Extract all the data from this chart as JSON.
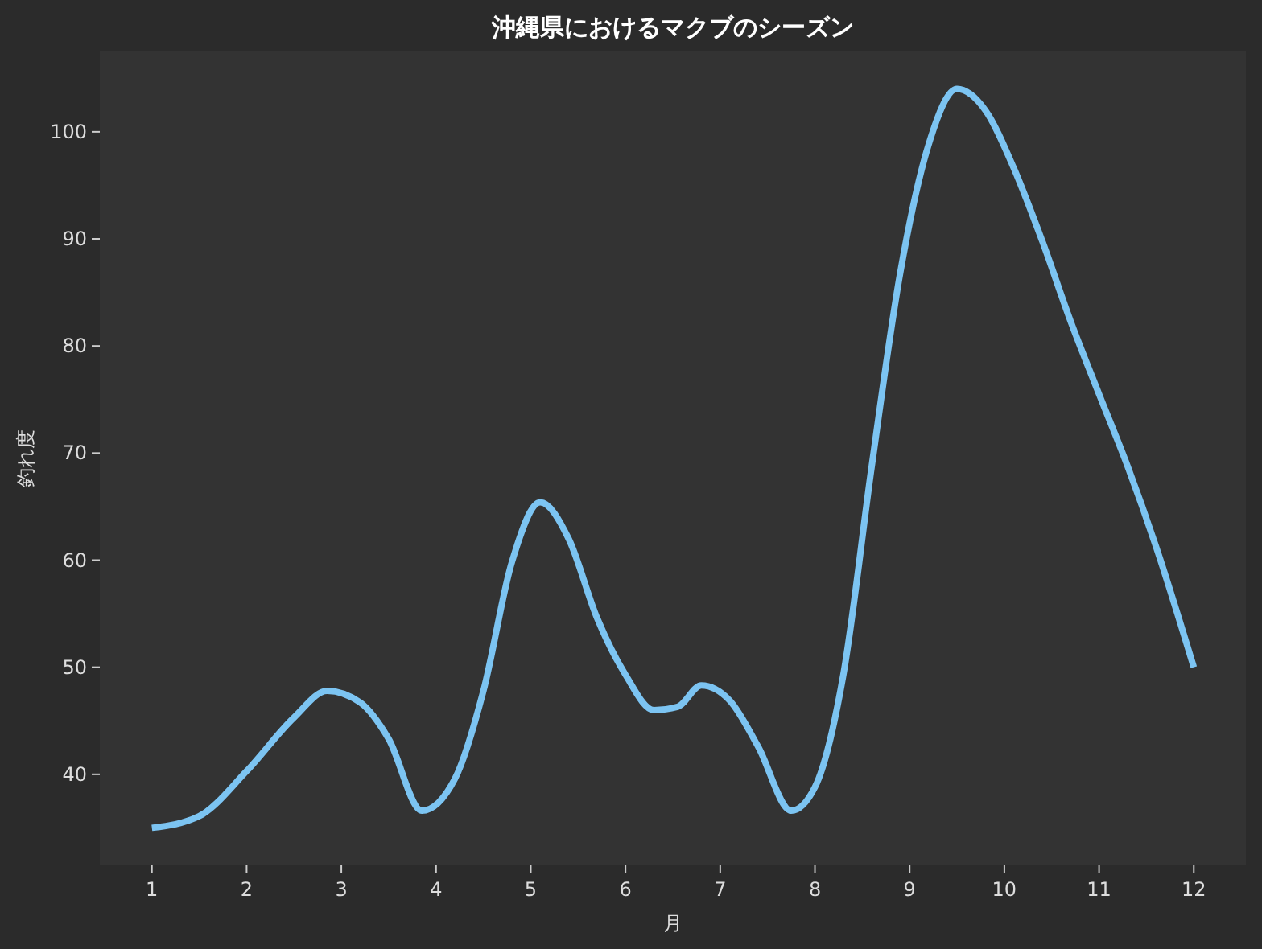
{
  "chart_data": {
    "type": "line",
    "title": "沖縄県におけるマクブのシーズン",
    "xlabel": "月",
    "ylabel": "釣れ度",
    "x": [
      1,
      1.5,
      2,
      2.5,
      2.85,
      3.2,
      3.5,
      3.85,
      4.2,
      4.5,
      4.8,
      5.1,
      5.4,
      5.7,
      6,
      6.3,
      6.55,
      6.8,
      7.1,
      7.4,
      7.75,
      8,
      8.3,
      8.6,
      8.9,
      9.2,
      9.5,
      9.8,
      10.1,
      10.4,
      10.7,
      11,
      11.3,
      11.6,
      12
    ],
    "series": [
      {
        "color": "#7cc4f2",
        "values": [
          35,
          36.1,
          40.3,
          45.3,
          47.8,
          46.7,
          43.3,
          36.6,
          39.6,
          47.8,
          59.8,
          65.4,
          62,
          54.6,
          49.3,
          46,
          46.3,
          48.3,
          46.9,
          42.6,
          36.6,
          38.8,
          49.3,
          68.8,
          86.8,
          98.8,
          104,
          102,
          96.6,
          89.8,
          82.3,
          75.5,
          68.8,
          61.3,
          50
        ]
      }
    ],
    "xlim": [
      0.45,
      12.55
    ],
    "ylim": [
      31.5,
      107.5
    ],
    "xticks": [
      1,
      2,
      3,
      4,
      5,
      6,
      7,
      8,
      9,
      10,
      11,
      12
    ],
    "yticks": [
      40,
      50,
      60,
      70,
      80,
      90,
      100
    ],
    "grid": false,
    "marker": "none",
    "line_style": "solid"
  }
}
